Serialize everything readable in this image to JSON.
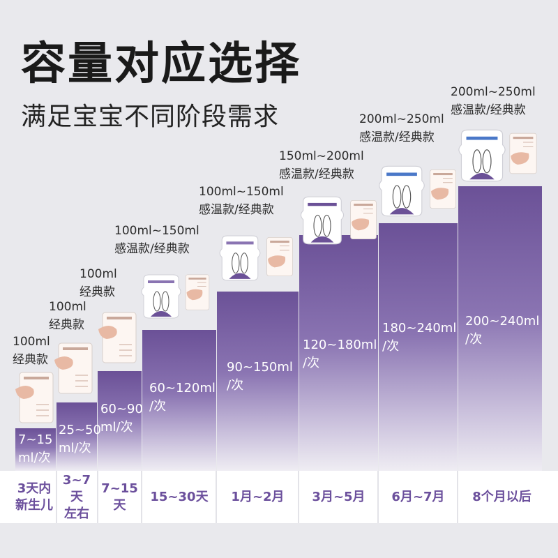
{
  "title": "容量对应选择",
  "subtitle": "满足宝宝不同阶段需求",
  "colors": {
    "bar_top": "#6b5197",
    "bar_bottom": "#efedf3",
    "age_text": "#6b4f9c"
  },
  "columns": [
    {
      "capacity": [
        "100ml",
        "经典款"
      ],
      "amount": [
        "7~15",
        "ml/次"
      ],
      "age": [
        "3天内",
        "新生儿"
      ],
      "bags": [
        "classic"
      ]
    },
    {
      "capacity": [
        "100ml",
        "经典款"
      ],
      "amount": [
        "25~50",
        "ml/次"
      ],
      "age": [
        "3~7天",
        "左右"
      ],
      "bags": [
        "classic"
      ]
    },
    {
      "capacity": [
        "100ml",
        "经典款"
      ],
      "amount": [
        "60~90",
        "ml/次"
      ],
      "age": [
        "7~15",
        "天"
      ],
      "bags": [
        "classic"
      ]
    },
    {
      "capacity": [
        "100ml~150ml",
        "感温款/经典款"
      ],
      "amount": [
        "60~120ml",
        "/次"
      ],
      "age": [
        "15~30天"
      ],
      "bags": [
        "warm",
        "classic"
      ]
    },
    {
      "capacity": [
        "100ml~150ml",
        "感温款/经典款"
      ],
      "amount": [
        "90~150ml",
        "/次"
      ],
      "age": [
        "1月~2月"
      ],
      "bags": [
        "warm",
        "classic"
      ]
    },
    {
      "capacity": [
        "150ml~200ml",
        "感温款/经典款"
      ],
      "amount": [
        "120~180ml",
        "/次"
      ],
      "age": [
        "3月~5月"
      ],
      "bags": [
        "warm",
        "classic"
      ]
    },
    {
      "capacity": [
        "200ml~250ml",
        "感温款/经典款"
      ],
      "amount": [
        "180~240ml",
        "/次"
      ],
      "age": [
        "6月~7月"
      ],
      "bags": [
        "warm",
        "classic"
      ]
    },
    {
      "capacity": [
        "200ml~250ml",
        "感温款/经典款"
      ],
      "amount": [
        "200~240ml",
        "/次"
      ],
      "age": [
        "8个月以后"
      ],
      "bags": [
        "warm",
        "classic"
      ]
    }
  ]
}
